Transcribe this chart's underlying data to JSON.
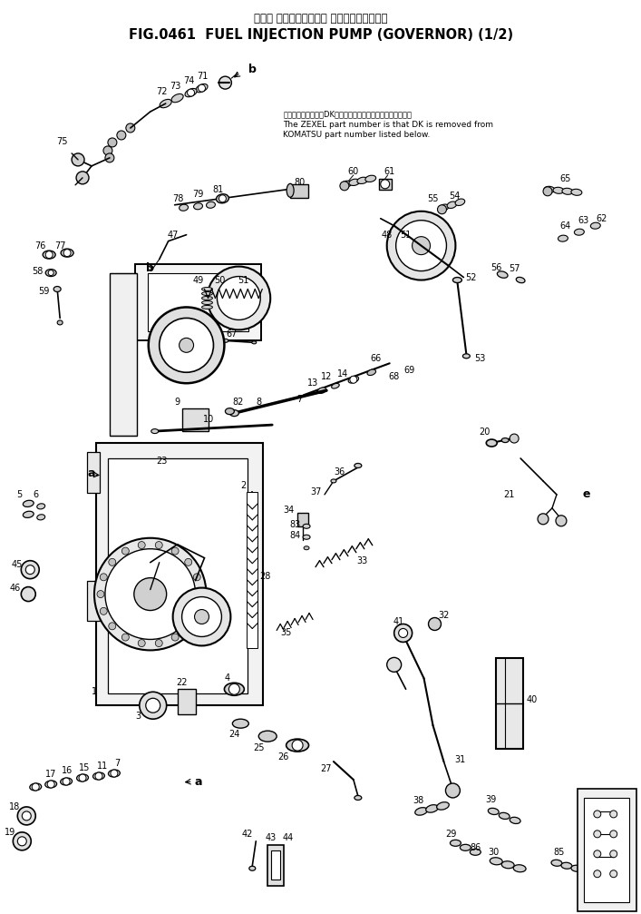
{
  "title_japanese": "フェル インジェクション ポンプ　ガ　バ　ナ",
  "title_english": "FIG.0461  FUEL INJECTION PUMP (GOVERNOR) (1/2)",
  "bg_color": "#ffffff",
  "fig_width": 7.07,
  "fig_height": 10.07,
  "dpi": 100,
  "note_japanese": "品番のメーカー記号DKを除いたものがゼクセルの品番です。",
  "note_english_1": "The ZEXEL part number is that DK is removed from",
  "note_english_2": "KOMATSU part number listed below.",
  "lc": "#000000"
}
